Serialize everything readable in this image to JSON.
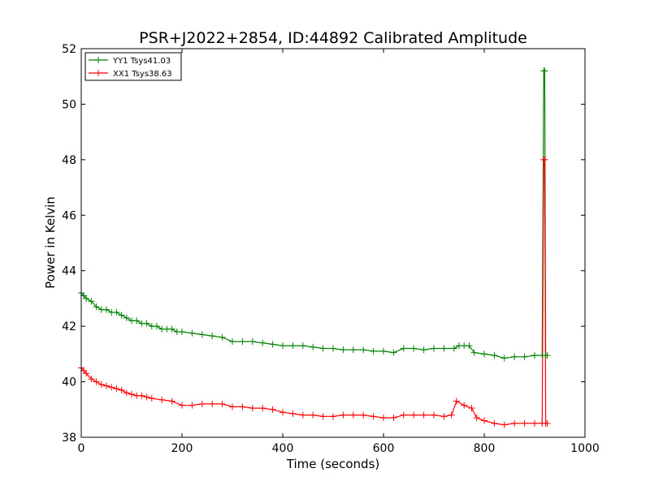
{
  "chart_data": {
    "type": "line",
    "title": "PSR+J2022+2854, ID:44892 Calibrated Amplitude",
    "xlabel": "Time (seconds)",
    "ylabel": "Power in Kelvin",
    "xlim": [
      0,
      1000
    ],
    "ylim": [
      38,
      52
    ],
    "x_ticks": [
      0,
      200,
      400,
      600,
      800,
      1000
    ],
    "y_ticks": [
      38,
      40,
      42,
      44,
      46,
      48,
      50,
      52
    ],
    "grid": false,
    "legend_position": "top-left",
    "marker": "plus",
    "series": [
      {
        "name": "YY1 Tsys41.03",
        "color": "#008000",
        "points": [
          [
            0,
            43.2
          ],
          [
            5,
            43.1
          ],
          [
            10,
            43.0
          ],
          [
            20,
            42.9
          ],
          [
            30,
            42.7
          ],
          [
            40,
            42.6
          ],
          [
            50,
            42.6
          ],
          [
            60,
            42.5
          ],
          [
            70,
            42.5
          ],
          [
            80,
            42.4
          ],
          [
            90,
            42.3
          ],
          [
            100,
            42.2
          ],
          [
            110,
            42.2
          ],
          [
            120,
            42.1
          ],
          [
            130,
            42.1
          ],
          [
            140,
            42.0
          ],
          [
            150,
            42.0
          ],
          [
            160,
            41.9
          ],
          [
            170,
            41.9
          ],
          [
            180,
            41.9
          ],
          [
            190,
            41.8
          ],
          [
            200,
            41.8
          ],
          [
            220,
            41.75
          ],
          [
            240,
            41.7
          ],
          [
            260,
            41.65
          ],
          [
            280,
            41.6
          ],
          [
            300,
            41.45
          ],
          [
            320,
            41.45
          ],
          [
            340,
            41.45
          ],
          [
            360,
            41.4
          ],
          [
            380,
            41.35
          ],
          [
            400,
            41.3
          ],
          [
            420,
            41.3
          ],
          [
            440,
            41.3
          ],
          [
            460,
            41.25
          ],
          [
            480,
            41.2
          ],
          [
            500,
            41.2
          ],
          [
            520,
            41.15
          ],
          [
            540,
            41.15
          ],
          [
            560,
            41.15
          ],
          [
            580,
            41.1
          ],
          [
            600,
            41.1
          ],
          [
            620,
            41.05
          ],
          [
            640,
            41.2
          ],
          [
            660,
            41.2
          ],
          [
            680,
            41.15
          ],
          [
            700,
            41.2
          ],
          [
            720,
            41.2
          ],
          [
            740,
            41.2
          ],
          [
            750,
            41.3
          ],
          [
            760,
            41.3
          ],
          [
            770,
            41.3
          ],
          [
            780,
            41.05
          ],
          [
            800,
            41.0
          ],
          [
            820,
            40.95
          ],
          [
            840,
            40.85
          ],
          [
            860,
            40.9
          ],
          [
            880,
            40.9
          ],
          [
            900,
            40.95
          ],
          [
            915,
            40.95
          ],
          [
            918,
            51.2
          ],
          [
            920,
            51.2
          ],
          [
            922,
            40.95
          ],
          [
            925,
            40.95
          ]
        ]
      },
      {
        "name": "XX1 Tsys38.63",
        "color": "#ff0000",
        "points": [
          [
            0,
            40.5
          ],
          [
            5,
            40.4
          ],
          [
            10,
            40.3
          ],
          [
            20,
            40.1
          ],
          [
            30,
            40.0
          ],
          [
            40,
            39.9
          ],
          [
            50,
            39.85
          ],
          [
            60,
            39.8
          ],
          [
            70,
            39.75
          ],
          [
            80,
            39.7
          ],
          [
            90,
            39.6
          ],
          [
            100,
            39.55
          ],
          [
            110,
            39.5
          ],
          [
            120,
            39.5
          ],
          [
            130,
            39.45
          ],
          [
            140,
            39.4
          ],
          [
            160,
            39.35
          ],
          [
            180,
            39.3
          ],
          [
            200,
            39.15
          ],
          [
            220,
            39.15
          ],
          [
            240,
            39.2
          ],
          [
            260,
            39.2
          ],
          [
            280,
            39.2
          ],
          [
            300,
            39.1
          ],
          [
            320,
            39.1
          ],
          [
            340,
            39.05
          ],
          [
            360,
            39.05
          ],
          [
            380,
            39.0
          ],
          [
            400,
            38.9
          ],
          [
            420,
            38.85
          ],
          [
            440,
            38.8
          ],
          [
            460,
            38.8
          ],
          [
            480,
            38.75
          ],
          [
            500,
            38.75
          ],
          [
            520,
            38.8
          ],
          [
            540,
            38.8
          ],
          [
            560,
            38.8
          ],
          [
            580,
            38.75
          ],
          [
            600,
            38.7
          ],
          [
            620,
            38.7
          ],
          [
            640,
            38.8
          ],
          [
            660,
            38.8
          ],
          [
            680,
            38.8
          ],
          [
            700,
            38.8
          ],
          [
            720,
            38.75
          ],
          [
            735,
            38.8
          ],
          [
            745,
            39.3
          ],
          [
            760,
            39.15
          ],
          [
            775,
            39.05
          ],
          [
            785,
            38.7
          ],
          [
            800,
            38.6
          ],
          [
            820,
            38.5
          ],
          [
            840,
            38.45
          ],
          [
            860,
            38.5
          ],
          [
            880,
            38.5
          ],
          [
            900,
            38.5
          ],
          [
            915,
            38.5
          ],
          [
            918,
            48.0
          ],
          [
            920,
            48.0
          ],
          [
            922,
            38.5
          ],
          [
            925,
            38.5
          ]
        ]
      }
    ]
  }
}
